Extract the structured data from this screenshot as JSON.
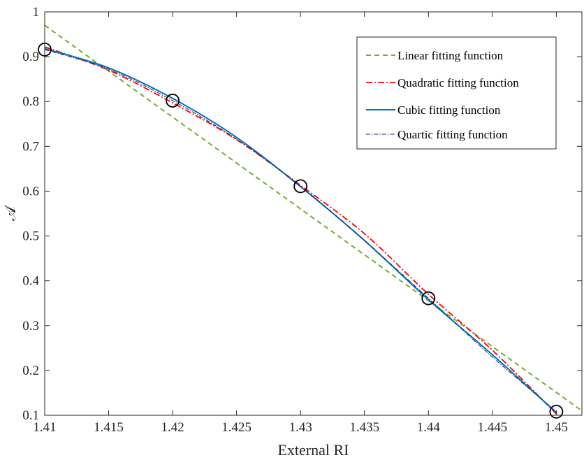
{
  "chart_data": {
    "type": "line",
    "title": "",
    "xlabel": "External RI",
    "ylabel": "𝒜",
    "xlim": [
      1.41,
      1.452
    ],
    "ylim": [
      0.1,
      1.0
    ],
    "xticks": [
      1.41,
      1.415,
      1.42,
      1.425,
      1.43,
      1.435,
      1.44,
      1.445,
      1.45
    ],
    "yticks": [
      0.1,
      0.2,
      0.3,
      0.4,
      0.5,
      0.6,
      0.7,
      0.8,
      0.9,
      1.0
    ],
    "xtick_labels": [
      "1.41",
      "1.415",
      "1.42",
      "1.425",
      "1.43",
      "1.435",
      "1.44",
      "1.445",
      "1.45"
    ],
    "ytick_labels": [
      "0.1",
      "0.2",
      "0.3",
      "0.4",
      "0.5",
      "0.6",
      "0.7",
      "0.8",
      "0.9",
      "1"
    ],
    "grid": false,
    "legend_position": "top-right",
    "markers": {
      "style": "open-circle",
      "color": "#000000",
      "x": [
        1.41,
        1.42,
        1.43,
        1.44,
        1.45
      ],
      "y": [
        0.916,
        0.802,
        0.611,
        0.361,
        0.108
      ]
    },
    "series": [
      {
        "name": "Linear fitting function",
        "color": "#77ac30",
        "dash": "dashed",
        "x": [
          1.41,
          1.452
        ],
        "y": [
          0.97,
          0.11
        ]
      },
      {
        "name": "Quadratic fitting function",
        "color": "#ff0000",
        "dash": "dashdot",
        "x": [
          1.41,
          1.415,
          1.42,
          1.425,
          1.43,
          1.435,
          1.44,
          1.445,
          1.45
        ],
        "y": [
          0.922,
          0.87,
          0.797,
          0.715,
          0.613,
          0.505,
          0.37,
          0.245,
          0.103
        ]
      },
      {
        "name": "Cubic fitting function",
        "color": "#0072bd",
        "dash": "solid",
        "x": [
          1.41,
          1.415,
          1.42,
          1.425,
          1.43,
          1.435,
          1.44,
          1.445,
          1.45
        ],
        "y": [
          0.918,
          0.875,
          0.807,
          0.72,
          0.61,
          0.49,
          0.358,
          0.235,
          0.106
        ]
      },
      {
        "name": "Quartic fitting function",
        "color": "#202060",
        "dash": "dashdotfine",
        "x": [
          1.41,
          1.415,
          1.42,
          1.425,
          1.43,
          1.435,
          1.44,
          1.445,
          1.45
        ],
        "y": [
          0.916,
          0.872,
          0.802,
          0.716,
          0.611,
          0.49,
          0.361,
          0.23,
          0.108
        ]
      }
    ]
  }
}
